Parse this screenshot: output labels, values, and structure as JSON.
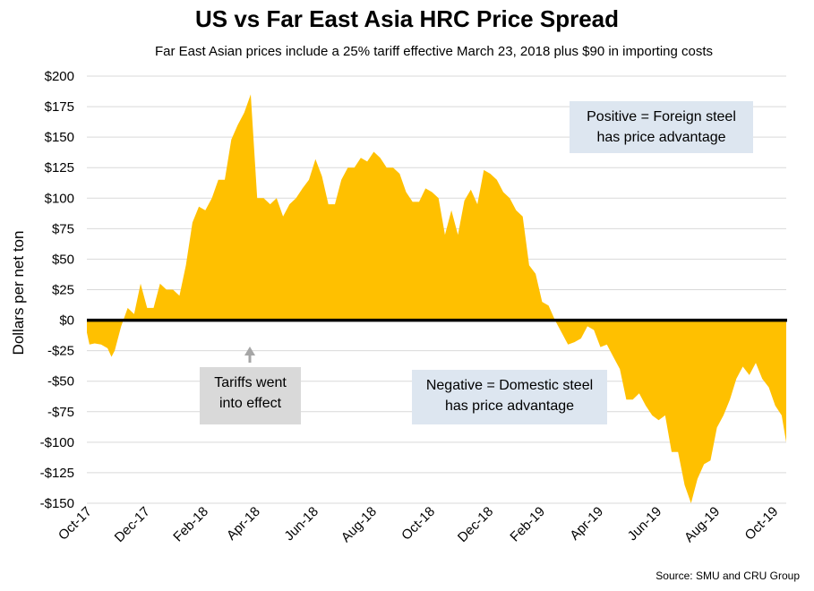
{
  "chart_data": {
    "type": "area",
    "title": "US vs Far East Asia HRC Price Spread",
    "subtitle": "Far East Asian prices include a 25% tariff effective March 23, 2018 plus $90 in importing costs",
    "ylabel": "Dollars per net ton",
    "xlabel": "",
    "ylim": [
      -150,
      200
    ],
    "yticks": [
      200,
      175,
      150,
      125,
      100,
      75,
      50,
      25,
      0,
      -25,
      -50,
      -75,
      -100,
      -125,
      -150
    ],
    "ytick_labels": [
      "$200",
      "$175",
      "$150",
      "$125",
      "$100",
      "$75",
      "$50",
      "$25",
      "$0",
      "-$25",
      "-$50",
      "-$75",
      "-$100",
      "-$125",
      "-$150"
    ],
    "xlim": [
      0,
      108
    ],
    "xticks": [
      0,
      9,
      18,
      26,
      35,
      44,
      53,
      62,
      70,
      79,
      88,
      97,
      106
    ],
    "xtick_labels": [
      "Oct-17",
      "Dec-17",
      "Feb-18",
      "Apr-18",
      "Jun-18",
      "Aug-18",
      "Oct-18",
      "Dec-18",
      "Feb-19",
      "Apr-19",
      "Jun-19",
      "Aug-19",
      "Oct-19"
    ],
    "grid": true,
    "fill_color": "#ffc000",
    "zero_line_color": "#000000",
    "series": [
      {
        "x": [
          0,
          0.4,
          1.2,
          2.2,
          3.2,
          3.8,
          4.3,
          5.3,
          6.3,
          7.3,
          8.3,
          9.3,
          10.3,
          11.3,
          12.3,
          13.3,
          14.3,
          15.3,
          16.3,
          17.3,
          18.3,
          19.3,
          20.3,
          21.3,
          22.3,
          23.3,
          24.3,
          25.3,
          26.3,
          27.3,
          28.3,
          29.3,
          30.3,
          31.3,
          32.3,
          33.3,
          34.3,
          35.3,
          36.3,
          37.3,
          38.3,
          39.3,
          40.3,
          41.3,
          42.3,
          43.3,
          44.3,
          45.3,
          46.3,
          47.3,
          48.3,
          49.3,
          50.3,
          51.3,
          52.3,
          53.3,
          54.3,
          55.3,
          56.3,
          57.3,
          58.3,
          59.3,
          60.3,
          61.3,
          62.3,
          63.3,
          64.3,
          65.3,
          66.3,
          67.3,
          68.3,
          69.3,
          70.3,
          71.3,
          72.3,
          73.3,
          74.3,
          75.3,
          76.3,
          77.3,
          78.3,
          79.3,
          80.3,
          81.3,
          82.3,
          83.3,
          84.3,
          85.3,
          86.3,
          87.3,
          88.3,
          89.3,
          90.3,
          91.3,
          92.3,
          93.3,
          94.3,
          95.3,
          96.3,
          97.3,
          98.3,
          99.3,
          100.3,
          101.3,
          102.3,
          103.3,
          104.3,
          105.3,
          106.3,
          107.3,
          108
        ],
        "values": [
          -10,
          -20,
          -19,
          -20,
          -23,
          -30,
          -25,
          -5,
          10,
          5,
          30,
          10,
          10,
          30,
          25,
          25,
          20,
          45,
          80,
          93,
          90,
          100,
          115,
          115,
          148,
          160,
          170,
          185,
          100,
          100,
          95,
          100,
          85,
          95,
          100,
          108,
          115,
          132,
          118,
          95,
          95,
          115,
          125,
          125,
          133,
          130,
          138,
          133,
          125,
          125,
          120,
          105,
          97,
          97,
          108,
          105,
          100,
          70,
          90,
          70,
          98,
          107,
          95,
          123,
          120,
          115,
          105,
          100,
          90,
          85,
          45,
          38,
          15,
          12,
          0,
          -10,
          -20,
          -18,
          -15,
          -5,
          -8,
          -22,
          -20,
          -30,
          -40,
          -65,
          -65,
          -60,
          -70,
          -78,
          -82,
          -78,
          -108,
          -108,
          -135,
          -150,
          -130,
          -118,
          -115,
          -88,
          -78,
          -65,
          -48,
          -38,
          -45,
          -35,
          -48,
          -55,
          -70,
          -78,
          -100
        ]
      }
    ]
  },
  "annotations": {
    "positive_line1": "Positive = Foreign steel",
    "positive_line2": "has price advantage",
    "negative_line1": "Negative = Domestic steel",
    "negative_line2": "has price advantage",
    "tariffs_line1": "Tariffs went",
    "tariffs_line2": "into effect",
    "arrow_color": "#a6a6a6"
  },
  "source": "Source: SMU and CRU Group"
}
